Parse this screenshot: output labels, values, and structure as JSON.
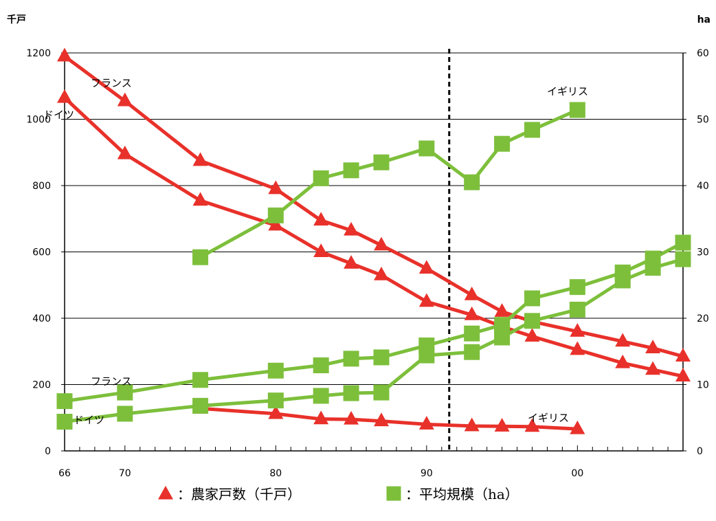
{
  "chart_data": {
    "type": "line",
    "left_unit": "千戸",
    "right_unit": "ha",
    "left_ylim": [
      0,
      1200
    ],
    "right_ylim": [
      0,
      60
    ],
    "left_yticks": [
      0,
      200,
      400,
      600,
      800,
      1000,
      1200
    ],
    "right_yticks": [
      0,
      10,
      20,
      30,
      40,
      50,
      60
    ],
    "xlim": [
      1966,
      2007
    ],
    "x_ticks": [
      {
        "x": 1966,
        "label": "66"
      },
      {
        "x": 1970,
        "label": "70"
      },
      {
        "x": 1980,
        "label": "80"
      },
      {
        "x": 1990,
        "label": "90"
      },
      {
        "x": 2000,
        "label": "00"
      }
    ],
    "divider_x": 1991.5,
    "grid": "horizontal",
    "colors": {
      "households": "#e8312a",
      "avg_size": "#7dbf3b"
    },
    "series_households": [
      {
        "label": "フランス",
        "points": [
          [
            1966,
            1190
          ],
          [
            1970,
            1055
          ],
          [
            1975,
            875
          ],
          [
            1980,
            790
          ],
          [
            1983,
            695
          ],
          [
            1985,
            665
          ],
          [
            1987,
            620
          ],
          [
            1990,
            550
          ],
          [
            1993,
            470
          ],
          [
            1995,
            420
          ],
          [
            1997,
            390
          ],
          [
            2000,
            360
          ],
          [
            2003,
            330
          ],
          [
            2005,
            310
          ],
          [
            2007,
            285
          ]
        ]
      },
      {
        "label": "ドイツ",
        "points": [
          [
            1966,
            1065
          ],
          [
            1970,
            895
          ],
          [
            1975,
            755
          ],
          [
            1980,
            680
          ],
          [
            1983,
            600
          ],
          [
            1985,
            565
          ],
          [
            1987,
            530
          ],
          [
            1990,
            450
          ],
          [
            1993,
            410
          ],
          [
            1995,
            375
          ],
          [
            1997,
            345
          ],
          [
            2000,
            305
          ],
          [
            2003,
            265
          ],
          [
            2005,
            245
          ],
          [
            2007,
            225
          ]
        ]
      },
      {
        "label": "イギリス",
        "points": [
          [
            1975,
            128
          ],
          [
            1980,
            112
          ],
          [
            1983,
            96
          ],
          [
            1985,
            95
          ],
          [
            1987,
            90
          ],
          [
            1990,
            80
          ],
          [
            1993,
            75
          ],
          [
            1995,
            74
          ],
          [
            1997,
            73
          ],
          [
            2000,
            66
          ]
        ]
      }
    ],
    "series_avg_size": [
      {
        "label": "イギリス",
        "points": [
          [
            1975,
            29.2
          ],
          [
            1980,
            35.5
          ],
          [
            1983,
            41.1
          ],
          [
            1985,
            42.3
          ],
          [
            1987,
            43.5
          ],
          [
            1990,
            45.6
          ],
          [
            1993,
            40.5
          ],
          [
            1995,
            46.3
          ],
          [
            1997,
            48.4
          ],
          [
            2000,
            51.4
          ]
        ]
      },
      {
        "label": "フランス",
        "points": [
          [
            1966,
            7.5
          ],
          [
            1970,
            8.8
          ],
          [
            1975,
            10.7
          ],
          [
            1980,
            12.1
          ],
          [
            1983,
            12.9
          ],
          [
            1985,
            13.9
          ],
          [
            1987,
            14.1
          ],
          [
            1990,
            15.9
          ],
          [
            1993,
            17.7
          ],
          [
            1995,
            19.0
          ],
          [
            1997,
            23.0
          ],
          [
            2000,
            24.7
          ],
          [
            2003,
            26.9
          ],
          [
            2005,
            29.0
          ],
          [
            2007,
            31.4
          ]
        ]
      },
      {
        "label": "ドイツ",
        "points": [
          [
            1966,
            4.4
          ],
          [
            1970,
            5.6
          ],
          [
            1975,
            6.8
          ],
          [
            1980,
            7.6
          ],
          [
            1983,
            8.3
          ],
          [
            1985,
            8.7
          ],
          [
            1987,
            8.8
          ],
          [
            1990,
            14.4
          ],
          [
            1993,
            14.9
          ],
          [
            1995,
            17.1
          ],
          [
            1997,
            19.6
          ],
          [
            2000,
            21.3
          ],
          [
            2003,
            25.7
          ],
          [
            2005,
            27.6
          ],
          [
            2007,
            28.9
          ]
        ]
      }
    ],
    "annotations": [
      {
        "text": "フランス",
        "group": "households",
        "series": 0
      },
      {
        "text": "ドイツ",
        "group": "households",
        "series": 1
      },
      {
        "text": "イギリス",
        "group": "households",
        "series": 2
      },
      {
        "text": "イギリス",
        "group": "avg_size",
        "series": 0
      },
      {
        "text": "フランス",
        "group": "avg_size",
        "series": 1
      },
      {
        "text": "ドイツ",
        "group": "avg_size",
        "series": 2
      }
    ],
    "legend": [
      {
        "marker": "triangle",
        "text": "：農家戸数（千戸）"
      },
      {
        "marker": "square",
        "text": "：平均規模（ha）"
      }
    ]
  }
}
